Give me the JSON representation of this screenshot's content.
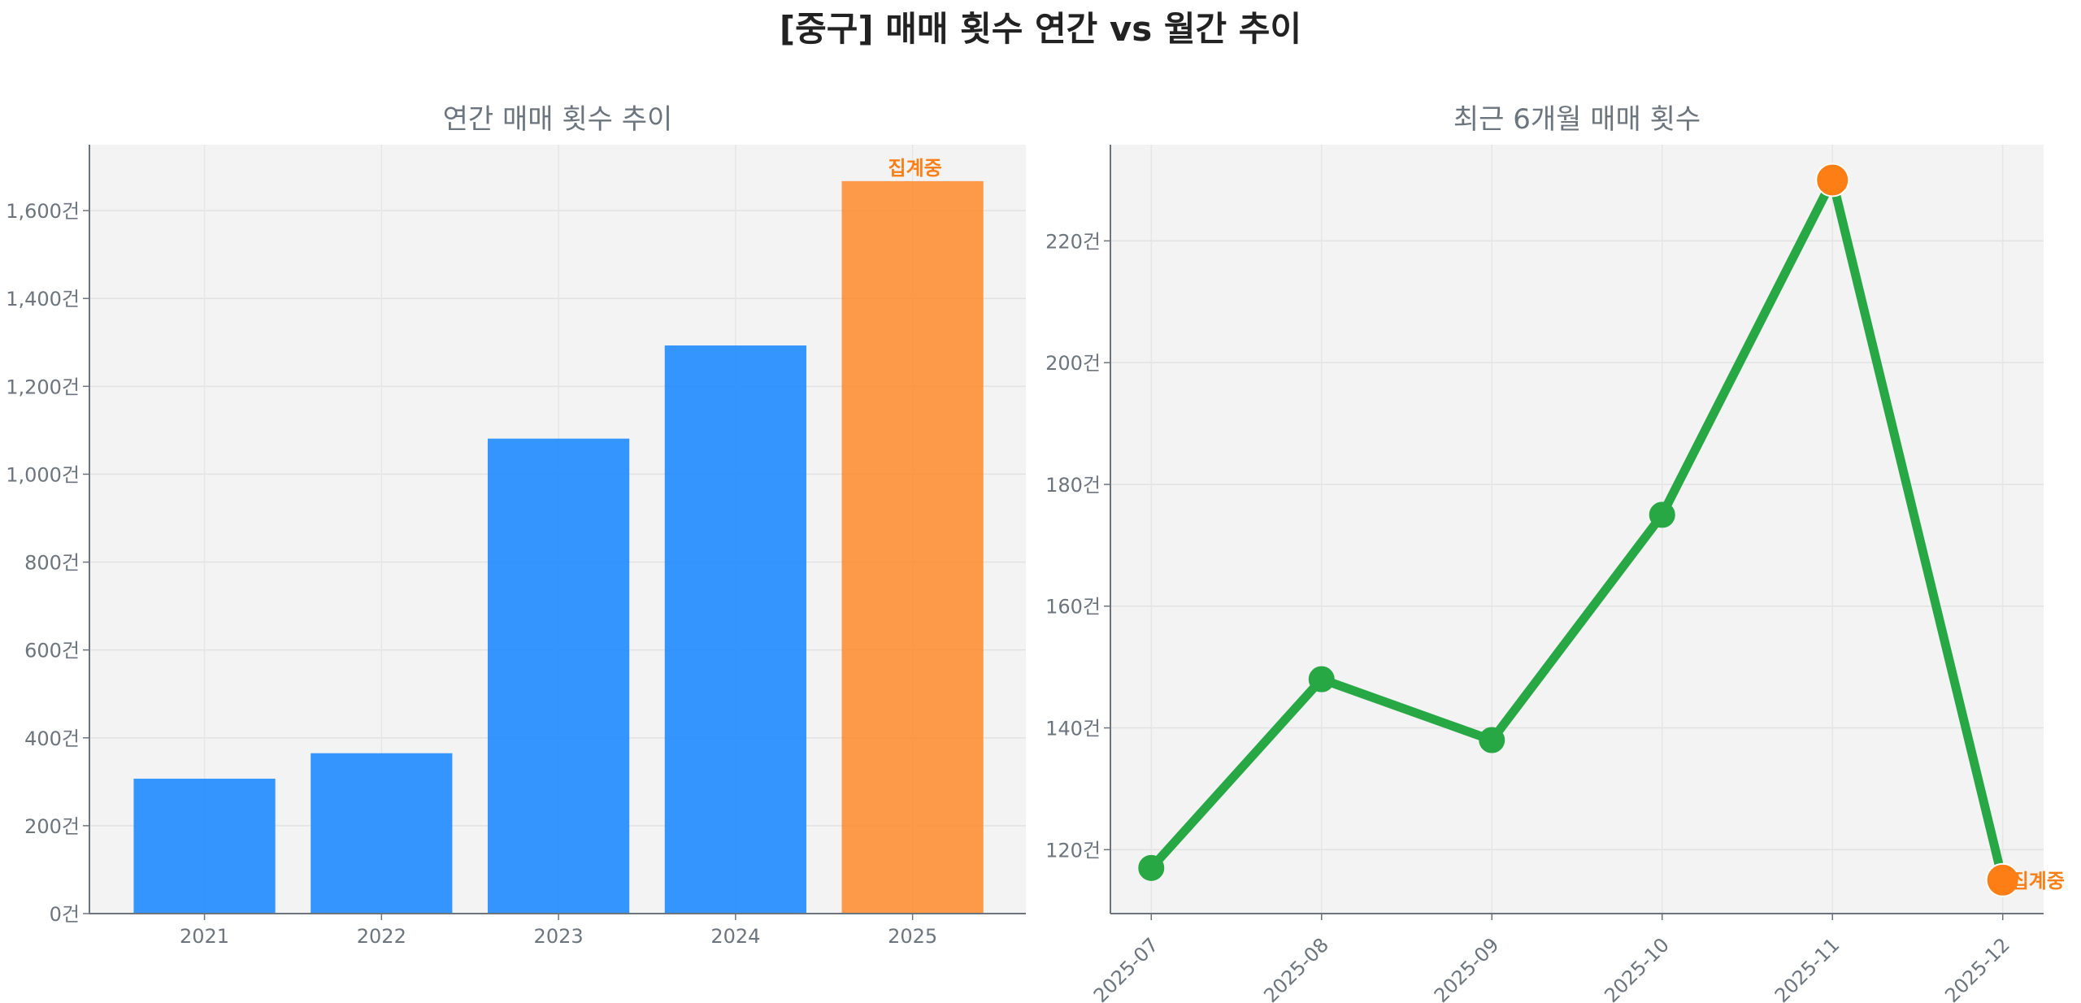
{
  "title": "[중구] 매매 횟수 연간 vs 월간 추이",
  "colors": {
    "bar": "#1f8bff",
    "bar_current": "#fd8a2a",
    "line": "#28a745",
    "highlight": "#fd7e14",
    "axes_bg": "#f3f3f3"
  },
  "chart_data": [
    {
      "type": "bar",
      "title": "연간 매매 횟수 추이",
      "categories": [
        "2021",
        "2022",
        "2023",
        "2024",
        "2025"
      ],
      "values": [
        307,
        365,
        1081,
        1293,
        1667
      ],
      "highlight_index": 4,
      "annotation": "집계중",
      "ylim": [
        0,
        1750
      ],
      "yticks": [
        0,
        200,
        400,
        600,
        800,
        1000,
        1200,
        1400,
        1600
      ],
      "ytick_labels": [
        "0건",
        "200건",
        "400건",
        "600건",
        "800건",
        "1,000건",
        "1,200건",
        "1,400건",
        "1,600건"
      ],
      "grid": true
    },
    {
      "type": "line",
      "title": "최근 6개월 매매 횟수",
      "categories": [
        "2025-07",
        "2025-08",
        "2025-09",
        "2025-10",
        "2025-11",
        "2025-12"
      ],
      "values": [
        117,
        148,
        138,
        175,
        230,
        115
      ],
      "highlight_indices": [
        4,
        5
      ],
      "annotation": "집계중",
      "ylim": [
        109.5,
        235.8
      ],
      "yticks": [
        120,
        140,
        160,
        180,
        200,
        220
      ],
      "ytick_labels": [
        "120건",
        "140건",
        "160건",
        "180건",
        "200건",
        "220건"
      ],
      "grid": true
    }
  ]
}
